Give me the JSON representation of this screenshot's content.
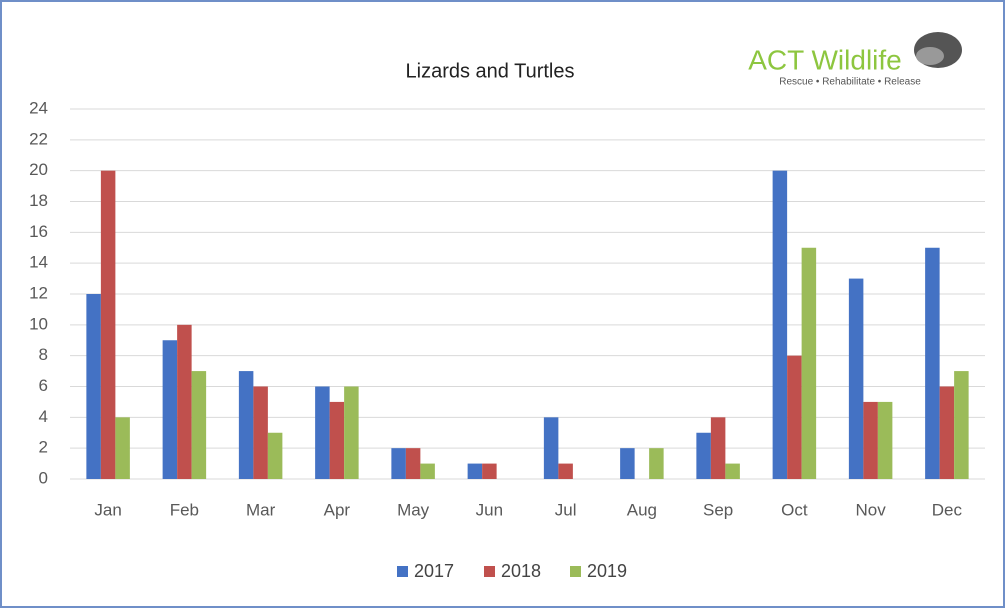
{
  "chart_data": {
    "type": "bar",
    "title": "Lizards and Turtles",
    "logo": {
      "name": "ACT Wildlife",
      "tagline": "Rescue • Rehabilitate • Release"
    },
    "categories": [
      "Jan",
      "Feb",
      "Mar",
      "Apr",
      "May",
      "Jun",
      "Jul",
      "Aug",
      "Sep",
      "Oct",
      "Nov",
      "Dec"
    ],
    "series": [
      {
        "name": "2017",
        "color": "#4472c4",
        "values": [
          12,
          9,
          7,
          6,
          2,
          1,
          4,
          2,
          3,
          20,
          13,
          15
        ]
      },
      {
        "name": "2018",
        "color": "#c0504d",
        "values": [
          20,
          10,
          6,
          5,
          2,
          1,
          1,
          0,
          4,
          8,
          5,
          6
        ]
      },
      {
        "name": "2019",
        "color": "#9bbb59",
        "values": [
          4,
          7,
          3,
          6,
          1,
          0,
          0,
          2,
          1,
          15,
          5,
          7
        ]
      }
    ],
    "ylim": [
      0,
      24
    ],
    "yticks": [
      0,
      2,
      4,
      6,
      8,
      10,
      12,
      14,
      16,
      18,
      20,
      22,
      24
    ],
    "grid": true,
    "legend": "bottom"
  }
}
